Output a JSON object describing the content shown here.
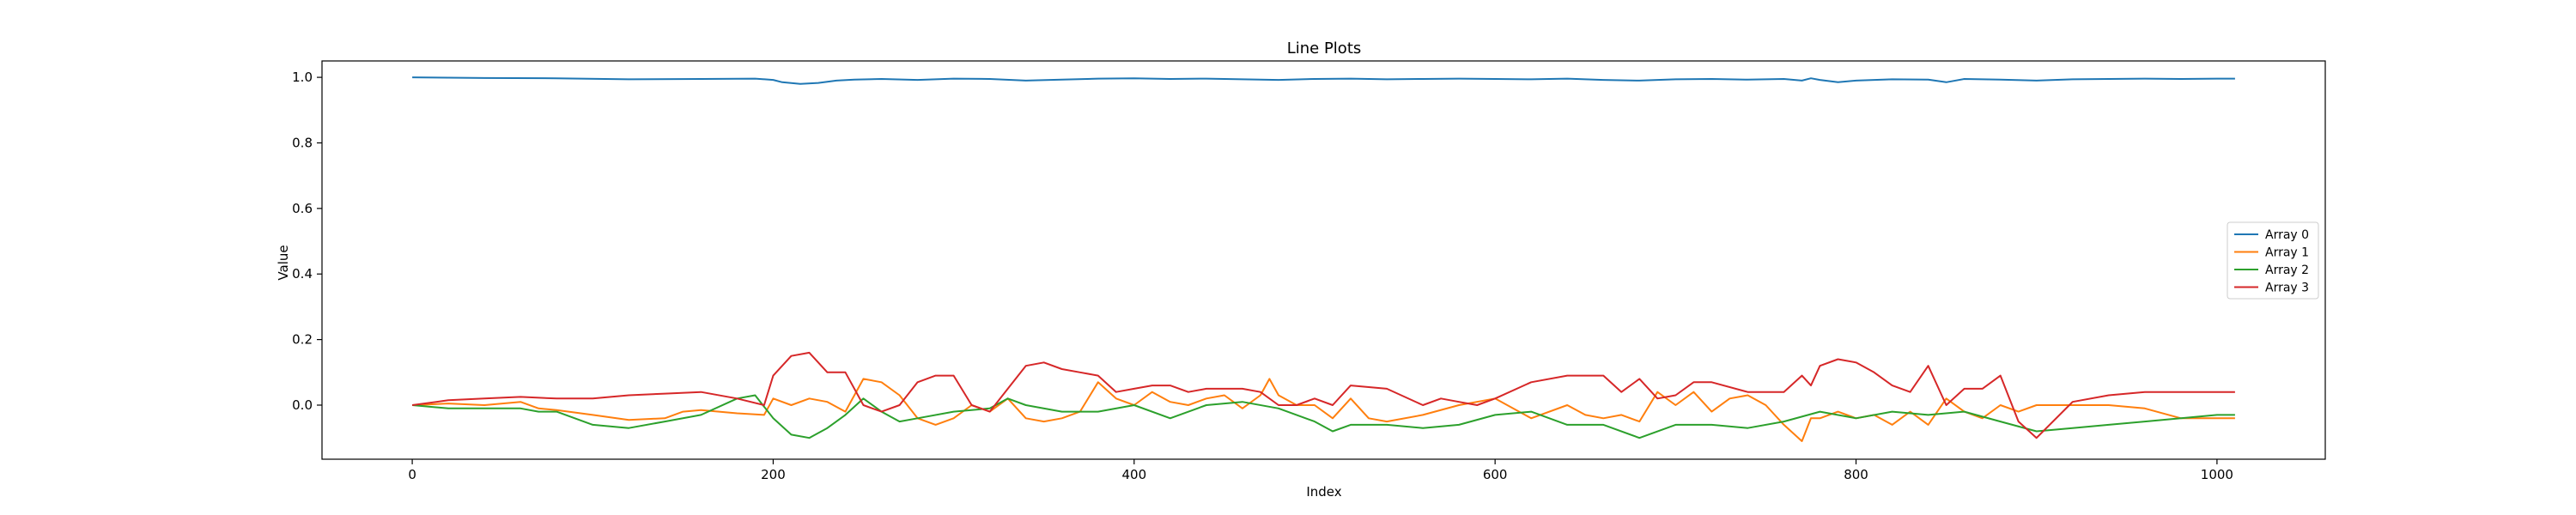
{
  "chart_data": {
    "type": "line",
    "title": "Line Plots",
    "xlabel": "Index",
    "ylabel": "Value",
    "xlim": [
      -50,
      1060
    ],
    "ylim": [
      -0.165,
      1.05
    ],
    "xticks": [
      0,
      200,
      400,
      600,
      800,
      1000
    ],
    "yticks": [
      0.0,
      0.2,
      0.4,
      0.6,
      0.8,
      1.0
    ],
    "ytick_labels": [
      "0.0",
      "0.2",
      "0.4",
      "0.6",
      "0.8",
      "1.0"
    ],
    "grid": false,
    "legend_position": "center-right",
    "series": [
      {
        "name": "Array 0",
        "color": "#1f77b4",
        "x": [
          0,
          40,
          80,
          120,
          160,
          190,
          200,
          205,
          215,
          225,
          235,
          245,
          260,
          280,
          300,
          320,
          340,
          360,
          380,
          400,
          420,
          440,
          460,
          480,
          500,
          520,
          540,
          560,
          580,
          600,
          620,
          640,
          660,
          680,
          700,
          720,
          740,
          760,
          770,
          775,
          780,
          790,
          800,
          820,
          840,
          850,
          860,
          880,
          900,
          920,
          940,
          960,
          980,
          1000,
          1010
        ],
        "y": [
          1.0,
          0.998,
          0.997,
          0.994,
          0.995,
          0.996,
          0.992,
          0.985,
          0.98,
          0.983,
          0.99,
          0.993,
          0.995,
          0.992,
          0.996,
          0.995,
          0.99,
          0.993,
          0.996,
          0.997,
          0.995,
          0.996,
          0.994,
          0.992,
          0.995,
          0.996,
          0.994,
          0.995,
          0.996,
          0.995,
          0.994,
          0.996,
          0.992,
          0.99,
          0.994,
          0.995,
          0.993,
          0.995,
          0.99,
          0.997,
          0.992,
          0.985,
          0.99,
          0.994,
          0.993,
          0.985,
          0.995,
          0.993,
          0.99,
          0.994,
          0.995,
          0.996,
          0.995,
          0.996,
          0.996
        ]
      },
      {
        "name": "Array 1",
        "color": "#ff7f0e",
        "x": [
          0,
          20,
          40,
          60,
          70,
          80,
          100,
          120,
          140,
          150,
          160,
          180,
          195,
          200,
          210,
          220,
          230,
          240,
          250,
          260,
          270,
          280,
          290,
          300,
          310,
          320,
          330,
          340,
          350,
          360,
          370,
          380,
          390,
          400,
          410,
          420,
          430,
          440,
          450,
          460,
          470,
          475,
          480,
          490,
          500,
          510,
          520,
          530,
          540,
          560,
          580,
          600,
          620,
          640,
          650,
          660,
          670,
          680,
          690,
          700,
          710,
          720,
          730,
          740,
          750,
          760,
          770,
          775,
          780,
          790,
          800,
          810,
          820,
          830,
          840,
          850,
          860,
          870,
          880,
          890,
          900,
          920,
          940,
          960,
          980,
          1000,
          1010
        ],
        "y": [
          0.0,
          0.005,
          0.0,
          0.01,
          -0.01,
          -0.015,
          -0.03,
          -0.045,
          -0.04,
          -0.02,
          -0.015,
          -0.025,
          -0.03,
          0.02,
          0.0,
          0.02,
          0.01,
          -0.02,
          0.08,
          0.07,
          0.03,
          -0.04,
          -0.06,
          -0.04,
          0.0,
          -0.02,
          0.02,
          -0.04,
          -0.05,
          -0.04,
          -0.02,
          0.07,
          0.02,
          0.0,
          0.04,
          0.01,
          0.0,
          0.02,
          0.03,
          -0.01,
          0.03,
          0.08,
          0.03,
          0.0,
          0.0,
          -0.04,
          0.02,
          -0.04,
          -0.05,
          -0.03,
          0.0,
          0.02,
          -0.04,
          0.0,
          -0.03,
          -0.04,
          -0.03,
          -0.05,
          0.04,
          0.0,
          0.04,
          -0.02,
          0.02,
          0.03,
          0.0,
          -0.06,
          -0.11,
          -0.04,
          -0.04,
          -0.02,
          -0.04,
          -0.03,
          -0.06,
          -0.02,
          -0.06,
          0.02,
          -0.02,
          -0.04,
          0.0,
          -0.02,
          0.0,
          0.0,
          0.0,
          -0.01,
          -0.04,
          -0.04,
          -0.04
        ]
      },
      {
        "name": "Array 2",
        "color": "#2ca02c",
        "x": [
          0,
          20,
          40,
          60,
          70,
          80,
          100,
          120,
          140,
          160,
          180,
          190,
          200,
          210,
          220,
          230,
          240,
          250,
          260,
          270,
          280,
          300,
          320,
          330,
          340,
          360,
          380,
          400,
          420,
          440,
          460,
          480,
          500,
          510,
          520,
          540,
          560,
          580,
          600,
          620,
          640,
          660,
          680,
          700,
          720,
          740,
          760,
          780,
          800,
          820,
          840,
          860,
          880,
          900,
          920,
          940,
          960,
          980,
          1000,
          1010
        ],
        "y": [
          0.0,
          -0.01,
          -0.01,
          -0.01,
          -0.02,
          -0.02,
          -0.06,
          -0.07,
          -0.05,
          -0.03,
          0.02,
          0.03,
          -0.04,
          -0.09,
          -0.1,
          -0.07,
          -0.03,
          0.02,
          -0.02,
          -0.05,
          -0.04,
          -0.02,
          -0.01,
          0.02,
          0.0,
          -0.02,
          -0.02,
          0.0,
          -0.04,
          0.0,
          0.01,
          -0.01,
          -0.05,
          -0.08,
          -0.06,
          -0.06,
          -0.07,
          -0.06,
          -0.03,
          -0.02,
          -0.06,
          -0.06,
          -0.1,
          -0.06,
          -0.06,
          -0.07,
          -0.05,
          -0.02,
          -0.04,
          -0.02,
          -0.03,
          -0.02,
          -0.05,
          -0.08,
          -0.07,
          -0.06,
          -0.05,
          -0.04,
          -0.03,
          -0.03
        ]
      },
      {
        "name": "Array 3",
        "color": "#d62728",
        "x": [
          0,
          20,
          40,
          60,
          80,
          100,
          120,
          140,
          160,
          180,
          195,
          200,
          210,
          220,
          230,
          240,
          250,
          260,
          270,
          280,
          290,
          300,
          310,
          320,
          330,
          340,
          350,
          360,
          370,
          380,
          390,
          400,
          410,
          420,
          430,
          440,
          460,
          470,
          480,
          490,
          500,
          510,
          520,
          540,
          560,
          570,
          580,
          590,
          600,
          620,
          640,
          660,
          670,
          680,
          690,
          700,
          710,
          720,
          740,
          760,
          770,
          775,
          780,
          790,
          800,
          810,
          820,
          830,
          840,
          850,
          860,
          870,
          880,
          890,
          900,
          920,
          940,
          960,
          980,
          1000,
          1010
        ],
        "y": [
          0.0,
          0.015,
          0.02,
          0.025,
          0.02,
          0.02,
          0.03,
          0.035,
          0.04,
          0.02,
          0.0,
          0.09,
          0.15,
          0.16,
          0.1,
          0.1,
          0.0,
          -0.02,
          0.0,
          0.07,
          0.09,
          0.09,
          0.0,
          -0.02,
          0.05,
          0.12,
          0.13,
          0.11,
          0.1,
          0.09,
          0.04,
          0.05,
          0.06,
          0.06,
          0.04,
          0.05,
          0.05,
          0.04,
          0.0,
          0.0,
          0.02,
          0.0,
          0.06,
          0.05,
          0.0,
          0.02,
          0.01,
          0.0,
          0.02,
          0.07,
          0.09,
          0.09,
          0.04,
          0.08,
          0.02,
          0.03,
          0.07,
          0.07,
          0.04,
          0.04,
          0.09,
          0.06,
          0.12,
          0.14,
          0.13,
          0.1,
          0.06,
          0.04,
          0.12,
          0.0,
          0.05,
          0.05,
          0.09,
          -0.05,
          -0.1,
          0.01,
          0.03,
          0.04,
          0.04,
          0.04,
          0.04
        ]
      }
    ]
  }
}
